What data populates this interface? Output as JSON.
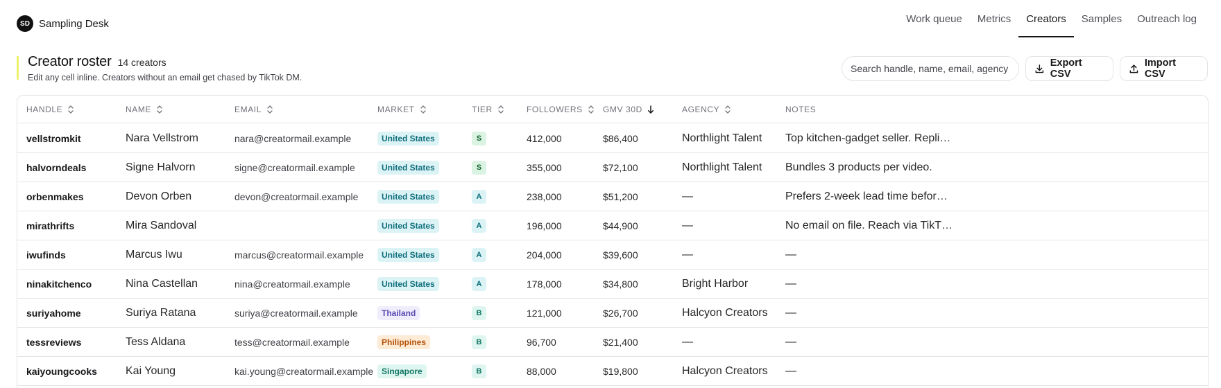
{
  "brand": {
    "initials": "SD",
    "name": "Sampling Desk"
  },
  "nav": [
    {
      "label": "Work queue",
      "active": false
    },
    {
      "label": "Metrics",
      "active": false
    },
    {
      "label": "Creators",
      "active": true
    },
    {
      "label": "Samples",
      "active": false
    },
    {
      "label": "Outreach log",
      "active": false
    }
  ],
  "header": {
    "title": "Creator roster",
    "count": "14 creators",
    "subtitle": "Edit any cell inline. Creators without an email get chased by TikTok DM.",
    "search_placeholder": "Search handle, name, email, agency",
    "export_label": "Export CSV",
    "import_label": "Import CSV"
  },
  "columns": [
    {
      "key": "handle",
      "label": "Handle",
      "sort": "both"
    },
    {
      "key": "name",
      "label": "Name",
      "sort": "both"
    },
    {
      "key": "email",
      "label": "Email",
      "sort": "both"
    },
    {
      "key": "market",
      "label": "Market",
      "sort": "both"
    },
    {
      "key": "tier",
      "label": "Tier",
      "sort": "both"
    },
    {
      "key": "followers",
      "label": "Followers",
      "sort": "both"
    },
    {
      "key": "gmv",
      "label": "GMV 30D",
      "sort": "desc"
    },
    {
      "key": "agency",
      "label": "Agency",
      "sort": "both"
    },
    {
      "key": "notes",
      "label": "Notes",
      "sort": "none"
    }
  ],
  "market_colors": {
    "United States": {
      "bg": "#dcf3f6",
      "fg": "#0f6f7c"
    },
    "Thailand": {
      "bg": "#efedfb",
      "fg": "#5b4bb3"
    },
    "Philippines": {
      "bg": "#fdebd6",
      "fg": "#b45309"
    },
    "Singapore": {
      "bg": "#dff5f0",
      "fg": "#0f7663"
    }
  },
  "tier_colors": {
    "S": {
      "bg": "#dbf3e2",
      "fg": "#166534"
    },
    "A": {
      "bg": "#dcf3f6",
      "fg": "#0f6f7c"
    },
    "B": {
      "bg": "#dff5f0",
      "fg": "#0f7663"
    }
  },
  "rows": [
    {
      "handle": "vellstromkit",
      "name": "Nara Vellstrom",
      "email": "nara@creatormail.example",
      "market": "United States",
      "tier": "S",
      "followers": "412,000",
      "gmv": "$86,400",
      "agency": "Northlight Talent",
      "notes": "Top kitchen-gadget seller. Repli…"
    },
    {
      "handle": "halvorndeals",
      "name": "Signe Halvorn",
      "email": "signe@creatormail.example",
      "market": "United States",
      "tier": "S",
      "followers": "355,000",
      "gmv": "$72,100",
      "agency": "Northlight Talent",
      "notes": "Bundles 3 products per video."
    },
    {
      "handle": "orbenmakes",
      "name": "Devon Orben",
      "email": "devon@creatormail.example",
      "market": "United States",
      "tier": "A",
      "followers": "238,000",
      "gmv": "$51,200",
      "agency": "—",
      "notes": "Prefers 2-week lead time befor…"
    },
    {
      "handle": "mirathrifts",
      "name": "Mira Sandoval",
      "email": "",
      "market": "United States",
      "tier": "A",
      "followers": "196,000",
      "gmv": "$44,900",
      "agency": "—",
      "notes": "No email on file. Reach via TikT…"
    },
    {
      "handle": "iwufinds",
      "name": "Marcus Iwu",
      "email": "marcus@creatormail.example",
      "market": "United States",
      "tier": "A",
      "followers": "204,000",
      "gmv": "$39,600",
      "agency": "—",
      "notes": "—"
    },
    {
      "handle": "ninakitchenco",
      "name": "Nina Castellan",
      "email": "nina@creatormail.example",
      "market": "United States",
      "tier": "A",
      "followers": "178,000",
      "gmv": "$34,800",
      "agency": "Bright Harbor",
      "notes": "—"
    },
    {
      "handle": "suriyahome",
      "name": "Suriya Ratana",
      "email": "suriya@creatormail.example",
      "market": "Thailand",
      "tier": "B",
      "followers": "121,000",
      "gmv": "$26,700",
      "agency": "Halcyon Creators",
      "notes": "—"
    },
    {
      "handle": "tessreviews",
      "name": "Tess Aldana",
      "email": "tess@creatormail.example",
      "market": "Philippines",
      "tier": "B",
      "followers": "96,700",
      "gmv": "$21,400",
      "agency": "—",
      "notes": "—"
    },
    {
      "handle": "kaiyoungcooks",
      "name": "Kai Young",
      "email": "kai.young@creatormail.example",
      "market": "Singapore",
      "tier": "B",
      "followers": "88,000",
      "gmv": "$19,800",
      "agency": "Halcyon Creators",
      "notes": "—"
    }
  ]
}
